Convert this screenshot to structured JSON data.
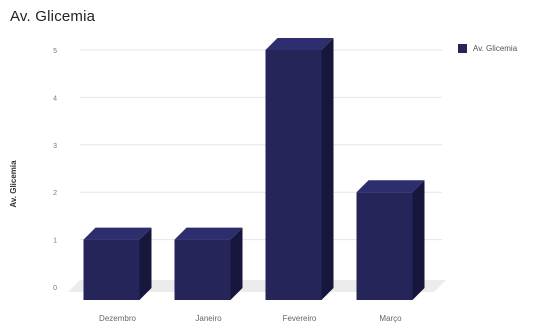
{
  "chart_data": {
    "type": "bar",
    "title": "Av. Glicemia",
    "ylabel": "Av. Glicemia",
    "xlabel": "",
    "categories": [
      "Dezembro",
      "Janeiro",
      "Fevereiro",
      "Março"
    ],
    "series": [
      {
        "name": "Av. Glicemia",
        "values": [
          1,
          1,
          5,
          2
        ]
      }
    ],
    "ylim": [
      0,
      5
    ],
    "yticks": [
      0,
      1,
      2,
      3,
      4,
      5
    ],
    "grid": true,
    "legend": "top-right",
    "style": "3d",
    "bar_color": "#25255a",
    "bar_top_color": "#2e2e6e",
    "bar_side_color": "#17173d"
  }
}
